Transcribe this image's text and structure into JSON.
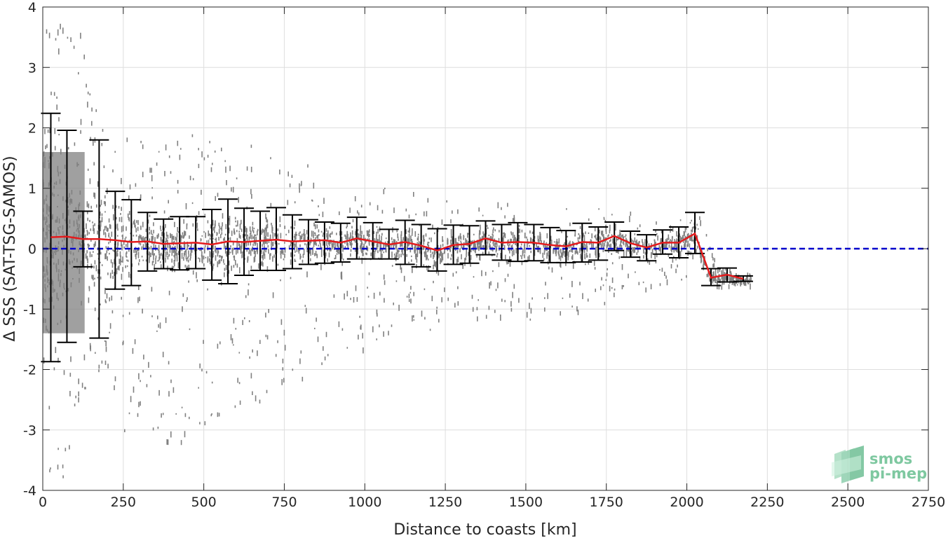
{
  "chart_data": {
    "type": "scatter",
    "xlabel": "Distance to coasts [km]",
    "ylabel": "Δ SSS (SAT-TSG-SAMOS)",
    "xlim": [
      0,
      2750
    ],
    "ylim": [
      -4,
      4
    ],
    "xticks": [
      0,
      250,
      500,
      750,
      1000,
      1250,
      1500,
      1750,
      2000,
      2250,
      2500,
      2750
    ],
    "yticks": [
      -4,
      -3,
      -2,
      -1,
      0,
      1,
      2,
      3,
      4
    ],
    "grid": true,
    "reference_line": {
      "y": 0,
      "color": "#0000cc",
      "style": "dashed"
    },
    "series": [
      {
        "kind": "mean_with_std_errorbars",
        "color": "#e41a1c",
        "errorbar_color": "#000000",
        "x": [
          25,
          75,
          125,
          175,
          225,
          275,
          325,
          375,
          425,
          475,
          525,
          575,
          625,
          675,
          725,
          775,
          825,
          875,
          925,
          975,
          1025,
          1075,
          1125,
          1175,
          1225,
          1275,
          1325,
          1375,
          1425,
          1475,
          1525,
          1575,
          1625,
          1675,
          1725,
          1775,
          1825,
          1875,
          1925,
          1975,
          2025,
          2075,
          2125,
          2175
        ],
        "mean": [
          0.19,
          0.2,
          0.16,
          0.16,
          0.14,
          0.11,
          0.12,
          0.08,
          0.09,
          0.1,
          0.07,
          0.12,
          0.11,
          0.13,
          0.15,
          0.12,
          0.13,
          0.14,
          0.1,
          0.17,
          0.12,
          0.07,
          0.11,
          0.05,
          -0.03,
          0.06,
          0.08,
          0.17,
          0.1,
          0.11,
          0.1,
          0.06,
          0.04,
          0.11,
          0.1,
          0.21,
          0.09,
          0.02,
          0.1,
          0.1,
          0.25,
          -0.48,
          -0.43,
          -0.5
        ],
        "upper": [
          2.24,
          1.96,
          0.62,
          1.8,
          0.95,
          0.81,
          0.6,
          0.49,
          0.53,
          0.53,
          0.65,
          0.82,
          0.67,
          0.62,
          0.68,
          0.56,
          0.48,
          0.44,
          0.42,
          0.52,
          0.43,
          0.32,
          0.47,
          0.4,
          0.33,
          0.39,
          0.38,
          0.46,
          0.4,
          0.43,
          0.4,
          0.35,
          0.3,
          0.42,
          0.36,
          0.44,
          0.29,
          0.23,
          0.31,
          0.36,
          0.6,
          -0.33,
          -0.32,
          -0.45
        ],
        "lower": [
          -1.87,
          -1.55,
          -0.3,
          -1.48,
          -0.67,
          -0.61,
          -0.37,
          -0.33,
          -0.35,
          -0.33,
          -0.52,
          -0.58,
          -0.44,
          -0.36,
          -0.36,
          -0.33,
          -0.26,
          -0.24,
          -0.22,
          -0.17,
          -0.17,
          -0.17,
          -0.26,
          -0.3,
          -0.37,
          -0.26,
          -0.24,
          -0.1,
          -0.19,
          -0.21,
          -0.2,
          -0.23,
          -0.23,
          -0.22,
          -0.19,
          -0.03,
          -0.14,
          -0.2,
          -0.09,
          -0.15,
          -0.08,
          -0.61,
          -0.55,
          -0.54
        ]
      },
      {
        "kind": "raw_scatter_density",
        "color": "#808080",
        "envelope_x": [
          0,
          25,
          75,
          125,
          175,
          250,
          350,
          500,
          700,
          900,
          1100,
          1300,
          1500,
          1700,
          1900,
          2000,
          2050,
          2100,
          2200
        ],
        "envelope_upper": [
          4.0,
          4.0,
          4.0,
          3.5,
          2.1,
          1.95,
          1.95,
          1.95,
          1.9,
          1.2,
          1.0,
          0.8,
          0.75,
          0.75,
          0.6,
          0.55,
          0.6,
          -0.3,
          -0.4
        ],
        "envelope_lower": [
          -4.0,
          -4.0,
          -3.8,
          -2.4,
          -2.0,
          -3.0,
          -3.5,
          -2.9,
          -2.5,
          -1.8,
          -1.5,
          -1.3,
          -1.2,
          -1.0,
          -0.6,
          -0.5,
          -0.3,
          -0.6,
          -0.6
        ]
      }
    ]
  },
  "logo": {
    "line1": "smos",
    "line2": "pi-mep",
    "color": "#7ec8a0"
  }
}
